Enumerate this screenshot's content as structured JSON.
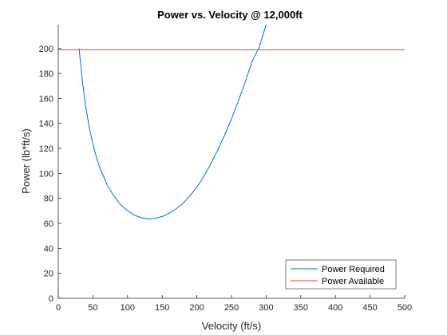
{
  "chart_data": {
    "type": "line",
    "title": "Power vs. Velocity @ 12,000ft",
    "xlabel": "Velocity (ft/s)",
    "ylabel": "Power (lb*ft/s)",
    "xlim": [
      0,
      500
    ],
    "ylim": [
      0,
      219
    ],
    "xticks": [
      0,
      50,
      100,
      150,
      200,
      250,
      300,
      350,
      400,
      450,
      500
    ],
    "yticks": [
      0,
      20,
      40,
      60,
      80,
      100,
      120,
      140,
      160,
      180,
      200
    ],
    "grid": false,
    "legend_position": "bottom-right",
    "series": [
      {
        "name": "Power Required",
        "color": "#0072BD",
        "x": [
          30,
          35,
          40,
          45,
          50,
          55,
          60,
          70,
          80,
          90,
          100,
          110,
          120,
          130,
          140,
          150,
          160,
          170,
          180,
          190,
          200,
          210,
          220,
          230,
          240,
          250,
          260,
          270,
          280,
          290,
          300
        ],
        "y": [
          200,
          173,
          152,
          136,
          123.5,
          113,
          104.5,
          91.5,
          82,
          75,
          70,
          66.5,
          64.5,
          63.5,
          64,
          65.5,
          68,
          71.5,
          76,
          82,
          89,
          97.5,
          107.5,
          118.5,
          130.5,
          143.5,
          158,
          173.5,
          190,
          201,
          219
        ]
      },
      {
        "name": "Power Available",
        "color": "#D95319",
        "x": [
          0,
          500
        ],
        "y": [
          199,
          199
        ]
      }
    ]
  }
}
